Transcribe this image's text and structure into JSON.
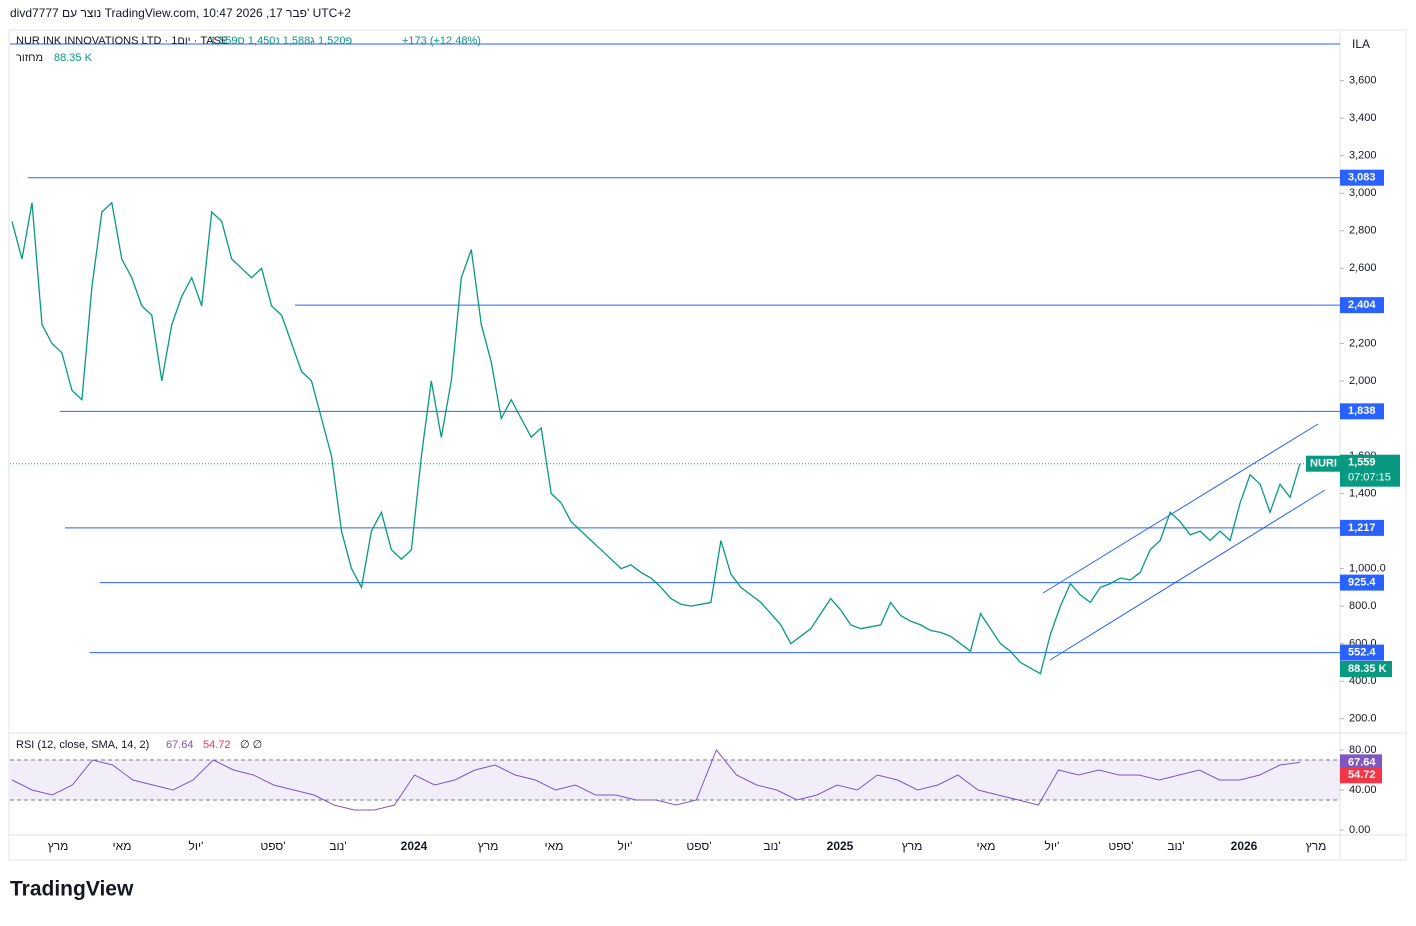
{
  "header": {
    "author_line": "divd7777 נוצר עם TradingView.com, 10:47 2026 ,17 פבר' UTC+2",
    "symbol": "NUR INK INNOVATIONS LTD · 1יום · TASE",
    "ohlc": "פ1,520 ג1,588 נ1,450 ס1,559",
    "change": "+173 (+12.48%)",
    "volume_label": "מחזור",
    "volume_value": "88.35 K",
    "currency": "ILA"
  },
  "chart_data": {
    "type": "line",
    "series": [
      {
        "name": "NURI",
        "color": "#089981",
        "values": [
          2850,
          2650,
          2950,
          2300,
          2200,
          2150,
          1950,
          1900,
          2500,
          2900,
          2950,
          2650,
          2550,
          2400,
          2350,
          2000,
          2300,
          2450,
          2550,
          2400,
          2900,
          2850,
          2650,
          2600,
          2550,
          2600,
          2400,
          2350,
          2200,
          2050,
          2000,
          1800,
          1600,
          1200,
          1000,
          900,
          1200,
          1300,
          1100,
          1050,
          1100,
          1600,
          2000,
          1700,
          2000,
          2550,
          2700,
          2300,
          2100,
          1800,
          1900,
          1800,
          1700,
          1750,
          1400,
          1350,
          1250,
          1200,
          1150,
          1100,
          1050,
          1000,
          1020,
          980,
          950,
          900,
          840,
          810,
          800,
          810,
          820,
          1150,
          970,
          900,
          860,
          820,
          760,
          700,
          600,
          640,
          680,
          760,
          840,
          780,
          700,
          680,
          690,
          700,
          820,
          750,
          720,
          700,
          670,
          660,
          640,
          600,
          560,
          760,
          680,
          600,
          560,
          500,
          470,
          440,
          650,
          800,
          920,
          860,
          820,
          900,
          920,
          950,
          940,
          980,
          1100,
          1150,
          1300,
          1250,
          1180,
          1200,
          1150,
          1200,
          1150,
          1350,
          1500,
          1450,
          1300,
          1450,
          1380,
          1559
        ]
      }
    ],
    "ylim": [
      140,
      3870
    ],
    "yticks": [
      {
        "value": 200,
        "label": "200.0"
      },
      {
        "value": 400,
        "label": "400.0"
      },
      {
        "value": 600,
        "label": "600.0"
      },
      {
        "value": 800,
        "label": "800.0"
      },
      {
        "value": 1000,
        "label": "1,000.0"
      },
      {
        "value": 1400,
        "label": "1,400"
      },
      {
        "value": 1600,
        "label": "1,600"
      },
      {
        "value": 2000,
        "label": "2,000"
      },
      {
        "value": 2200,
        "label": "2,200"
      },
      {
        "value": 2600,
        "label": "2,600"
      },
      {
        "value": 2800,
        "label": "2,800"
      },
      {
        "value": 3000,
        "label": "3,000"
      },
      {
        "value": 3200,
        "label": "3,200"
      },
      {
        "value": 3400,
        "label": "3,400"
      },
      {
        "value": 3600,
        "label": "3,600"
      }
    ],
    "levels": [
      {
        "value": 3083,
        "label": "3,083"
      },
      {
        "value": 2404,
        "label": "2,404"
      },
      {
        "value": 1838,
        "label": "1,838"
      },
      {
        "value": 1217,
        "label": "1,217"
      },
      925.4,
      552.4
    ],
    "last_price": {
      "value": 1559,
      "label": "1,559"
    },
    "countdown": "07:07:15",
    "volume_last": "88.35 K",
    "time_labels": [
      "מרץ",
      "מאי",
      "יול'",
      "ספט'",
      "נוב'",
      "2024",
      "מרץ",
      "מאי",
      "יול'",
      "ספט'",
      "נוב'",
      "2025",
      "מרץ",
      "מאי",
      "יול'",
      "ספט'",
      "נוב'",
      "2026",
      "מרץ"
    ]
  },
  "rsi": {
    "type": "line",
    "title": "RSI (12, close, SMA, 14, 2)",
    "color": "#7e57c2",
    "values": [
      50,
      40,
      35,
      45,
      70,
      65,
      50,
      45,
      40,
      50,
      70,
      60,
      55,
      45,
      40,
      35,
      25,
      20,
      20,
      25,
      55,
      45,
      50,
      60,
      65,
      55,
      50,
      40,
      45,
      35,
      35,
      30,
      30,
      25,
      30,
      80,
      55,
      45,
      40,
      30,
      35,
      45,
      40,
      55,
      50,
      40,
      45,
      55,
      40,
      35,
      30,
      25,
      60,
      55,
      60,
      55,
      55,
      50,
      55,
      60,
      50,
      50,
      55,
      65,
      67.64
    ],
    "last": 67.64,
    "sma_last": 54.72,
    "sma_color": "#f23645",
    "na": "∅ ∅",
    "bands": [
      30,
      70
    ],
    "ylim": [
      -5,
      95
    ],
    "yticks": [
      {
        "value": 0,
        "label": "0.00"
      },
      {
        "value": 40,
        "label": "40.00"
      },
      {
        "value": 80,
        "label": "80.00"
      }
    ]
  },
  "footer": {
    "brand": "TradingView"
  }
}
